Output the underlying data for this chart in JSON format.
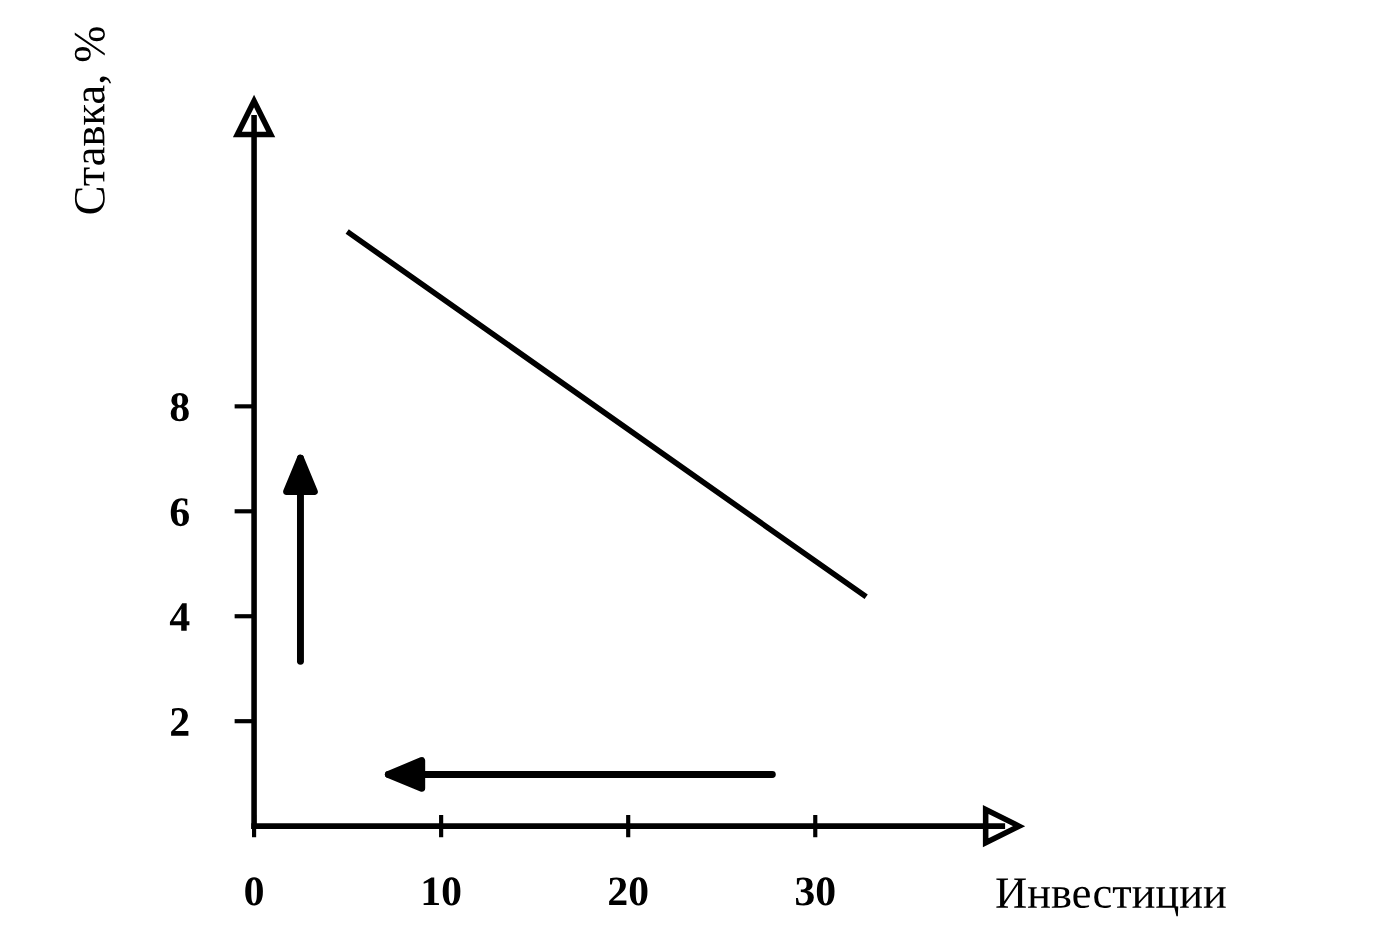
{
  "chart_data": {
    "type": "line",
    "xlabel": "Инвестиции",
    "ylabel": "Ставка, %",
    "series": [
      {
        "color": "#000000",
        "x": [
          5.1,
          32.6
        ],
        "values": [
          11.3,
          4.4
        ]
      }
    ],
    "xlim": [
      0,
      40
    ],
    "ylim": [
      0,
      13.5
    ],
    "xticks": [
      0,
      10,
      20,
      30
    ],
    "yticks": [
      2,
      4,
      6,
      8
    ],
    "grid": false,
    "legend": false,
    "marker": "none",
    "line_style": "solid"
  }
}
